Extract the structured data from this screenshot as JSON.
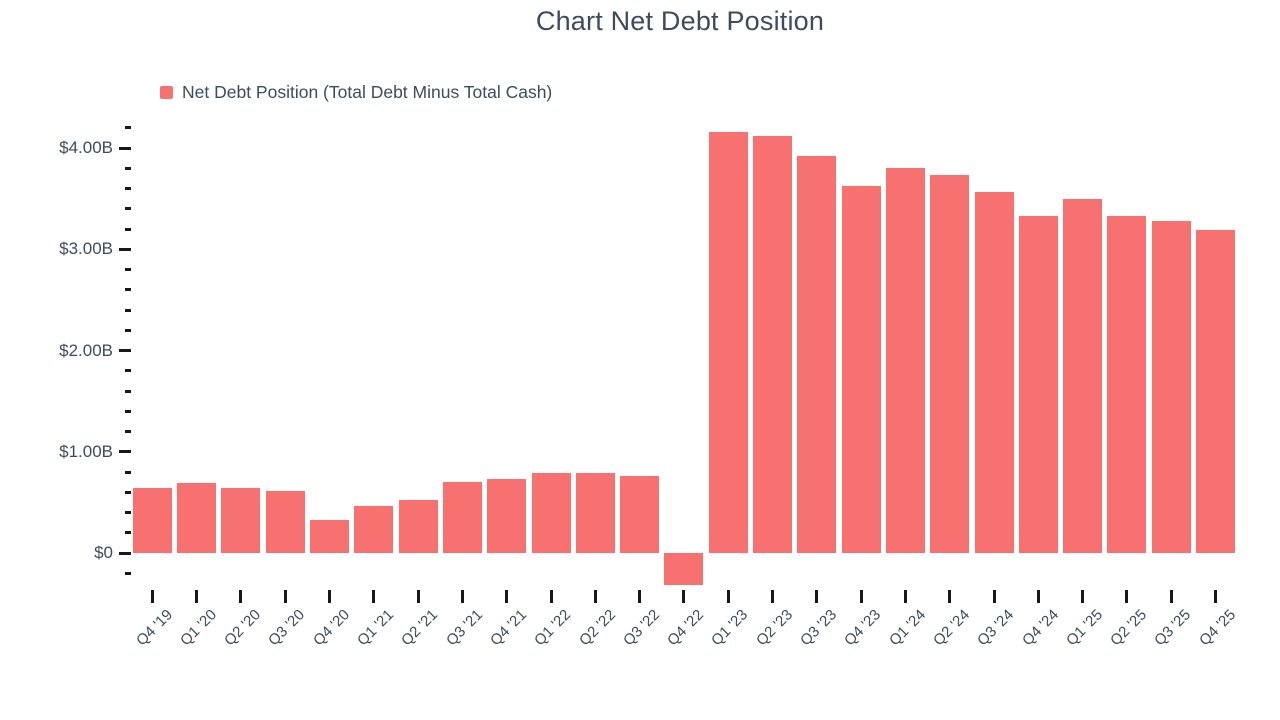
{
  "title": "Chart Net Debt Position",
  "legend": {
    "label": "Net Debt Position (Total Debt Minus Total Cash)"
  },
  "colors": {
    "bar": "#f87171",
    "text": "#3e4b5e",
    "tick": "#16181d",
    "background": "#ffffff"
  },
  "chart_data": {
    "type": "bar",
    "title": "Chart Net Debt Position",
    "categories": [
      "Q4 '19",
      "Q1 '20",
      "Q2 '20",
      "Q3 '20",
      "Q4 '20",
      "Q1 '21",
      "Q2 '21",
      "Q3 '21",
      "Q4 '21",
      "Q1 '22",
      "Q2 '22",
      "Q3 '22",
      "Q4 '22",
      "Q1 '23",
      "Q2 '23",
      "Q3 '23",
      "Q4 '23",
      "Q1 '24",
      "Q2 '24",
      "Q3 '24",
      "Q4 '24",
      "Q1 '25",
      "Q2 '25",
      "Q3 '25",
      "Q4 '25"
    ],
    "series": [
      {
        "name": "Net Debt Position (Total Debt Minus Total Cash)",
        "values": [
          0.64,
          0.69,
          0.64,
          0.61,
          0.33,
          0.46,
          0.52,
          0.7,
          0.73,
          0.79,
          0.79,
          0.76,
          -0.32,
          4.16,
          4.12,
          3.92,
          3.63,
          3.8,
          3.74,
          3.57,
          3.33,
          3.5,
          3.33,
          3.28,
          3.19
        ]
      }
    ],
    "value_unit": "USD billions",
    "xlabel": "",
    "ylabel": "",
    "ylim": [
      -0.2,
      4.2
    ],
    "y_major_ticks": [
      {
        "value": 0,
        "label": "$0"
      },
      {
        "value": 1,
        "label": "$1.00B"
      },
      {
        "value": 2,
        "label": "$2.00B"
      },
      {
        "value": 3,
        "label": "$3.00B"
      },
      {
        "value": 4,
        "label": "$4.00B"
      }
    ],
    "y_minor_tick_step": 0.2,
    "grid": false,
    "legend_position": "top-left"
  }
}
